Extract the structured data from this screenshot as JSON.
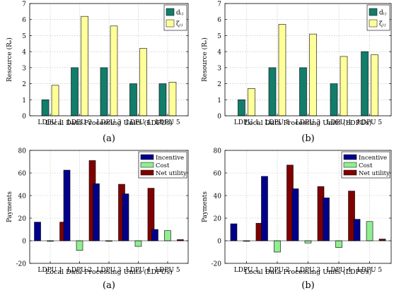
{
  "chart_data": [
    {
      "type": "bar",
      "panel_label": "(a)",
      "xlabel": "Local Data Processing Units (LDPUs)",
      "ylabel": "Resource (Rₑ)",
      "ylim": [
        0,
        7
      ],
      "yticks": [
        0,
        1,
        2,
        3,
        4,
        5,
        6,
        7
      ],
      "grid": true,
      "legend_position": "top-right",
      "categories": [
        "LDPU 1",
        "LDPU 2",
        "LDPU 3",
        "LDPU 4",
        "LDPU 5"
      ],
      "series": [
        {
          "name": "dᵢⱼ",
          "color": "#127d6a",
          "values": [
            1,
            3,
            3,
            2,
            2
          ]
        },
        {
          "name": "ζᵢⱼ",
          "color": "#ffff99",
          "values": [
            1.9,
            6.2,
            5.6,
            4.2,
            2.1
          ]
        }
      ]
    },
    {
      "type": "bar",
      "panel_label": "(b)",
      "xlabel": "Local Data Processing Units (LDPUs)",
      "ylabel": "Resource (Rₑ)",
      "ylim": [
        0,
        7
      ],
      "yticks": [
        0,
        1,
        2,
        3,
        4,
        5,
        6,
        7
      ],
      "grid": true,
      "legend_position": "top-right",
      "categories": [
        "LDPU 1",
        "LDPU 2",
        "LDPU 3",
        "LDPU 4",
        "LDPU 5"
      ],
      "series": [
        {
          "name": "dᵢⱼ",
          "color": "#127d6a",
          "values": [
            1,
            3,
            3,
            2,
            4
          ]
        },
        {
          "name": "ζᵢⱼ",
          "color": "#ffff99",
          "values": [
            1.7,
            5.7,
            5.1,
            3.7,
            3.8
          ]
        }
      ]
    },
    {
      "type": "bar",
      "panel_label": "(a)",
      "xlabel": "Local Data Processing Units (LDPUs)",
      "ylabel": "Payments",
      "ylim": [
        -20,
        80
      ],
      "yticks": [
        -20,
        0,
        20,
        40,
        60,
        80
      ],
      "grid": true,
      "legend_position": "top-right",
      "categories": [
        "LDPU 1",
        "LDPU 2",
        "LDPU 3",
        "LDPU 4",
        "LDPU 5"
      ],
      "series": [
        {
          "name": "Incentive",
          "color": "#00008b",
          "values": [
            16.5,
            62.5,
            50.5,
            41.5,
            10
          ]
        },
        {
          "name": "Cost",
          "color": "#90ee90",
          "values": [
            0,
            -8.5,
            0,
            -5,
            9
          ]
        },
        {
          "name": "Net utility",
          "color": "#800000",
          "values": [
            16.5,
            71,
            50,
            46.5,
            1
          ]
        }
      ]
    },
    {
      "type": "bar",
      "panel_label": "(b)",
      "xlabel": "Local Data Processing Units (LDPUs)",
      "ylabel": "Payments",
      "ylim": [
        -20,
        80
      ],
      "yticks": [
        -20,
        0,
        20,
        40,
        60,
        80
      ],
      "grid": true,
      "legend_position": "top-right",
      "categories": [
        "LDPU 1",
        "LDPU 2",
        "LDPU 3",
        "LDPU 4",
        "LDPU 5"
      ],
      "series": [
        {
          "name": "Incentive",
          "color": "#00008b",
          "values": [
            15,
            57,
            46,
            38,
            19
          ]
        },
        {
          "name": "Cost",
          "color": "#90ee90",
          "values": [
            -0.5,
            -10,
            -2,
            -6,
            17
          ]
        },
        {
          "name": "Net utility",
          "color": "#800000",
          "values": [
            15.5,
            67,
            48,
            44,
            1.5
          ]
        }
      ]
    }
  ]
}
